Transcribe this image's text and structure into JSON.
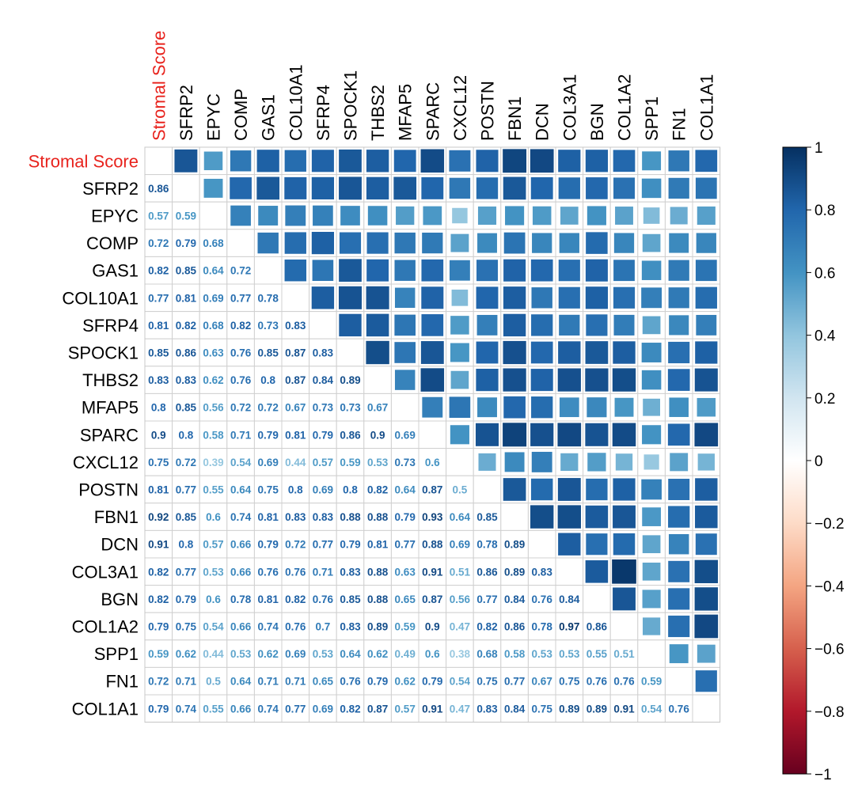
{
  "chart_data": {
    "type": "heatmap",
    "title": "",
    "labels": [
      "Stromal Score",
      "SFRP2",
      "EPYC",
      "COMP",
      "GAS1",
      "COL10A1",
      "SFRP4",
      "SPOCK1",
      "THBS2",
      "MFAP5",
      "SPARC",
      "CXCL12",
      "POSTN",
      "FBN1",
      "DCN",
      "COL3A1",
      "BGN",
      "COL1A2",
      "SPP1",
      "FN1",
      "COL1A1"
    ],
    "highlight_label": "Stromal Score",
    "highlight_color": "#e8231d",
    "values": [
      [],
      [
        0.86
      ],
      [
        0.57,
        0.59
      ],
      [
        0.72,
        0.79,
        0.68
      ],
      [
        0.82,
        0.85,
        0.64,
        0.72
      ],
      [
        0.77,
        0.81,
        0.69,
        0.77,
        0.78
      ],
      [
        0.81,
        0.82,
        0.68,
        0.82,
        0.73,
        0.83
      ],
      [
        0.85,
        0.86,
        0.63,
        0.76,
        0.85,
        0.87,
        0.83
      ],
      [
        0.83,
        0.83,
        0.62,
        0.76,
        0.8,
        0.87,
        0.84,
        0.89
      ],
      [
        0.8,
        0.85,
        0.56,
        0.72,
        0.72,
        0.67,
        0.73,
        0.73,
        0.67
      ],
      [
        0.9,
        0.8,
        0.58,
        0.71,
        0.79,
        0.81,
        0.79,
        0.86,
        0.9,
        0.69
      ],
      [
        0.75,
        0.72,
        0.39,
        0.54,
        0.69,
        0.44,
        0.57,
        0.59,
        0.53,
        0.73,
        0.6
      ],
      [
        0.81,
        0.77,
        0.55,
        0.64,
        0.75,
        0.8,
        0.69,
        0.8,
        0.82,
        0.64,
        0.87,
        0.5
      ],
      [
        0.92,
        0.85,
        0.6,
        0.74,
        0.81,
        0.83,
        0.83,
        0.88,
        0.88,
        0.79,
        0.93,
        0.64,
        0.85
      ],
      [
        0.91,
        0.8,
        0.57,
        0.66,
        0.79,
        0.72,
        0.77,
        0.79,
        0.81,
        0.77,
        0.88,
        0.69,
        0.78,
        0.89
      ],
      [
        0.82,
        0.77,
        0.53,
        0.66,
        0.76,
        0.76,
        0.71,
        0.83,
        0.88,
        0.63,
        0.91,
        0.51,
        0.86,
        0.89,
        0.83
      ],
      [
        0.82,
        0.79,
        0.6,
        0.78,
        0.81,
        0.82,
        0.76,
        0.85,
        0.88,
        0.65,
        0.87,
        0.56,
        0.77,
        0.84,
        0.76,
        0.84
      ],
      [
        0.79,
        0.75,
        0.54,
        0.66,
        0.74,
        0.76,
        0.7,
        0.83,
        0.89,
        0.59,
        0.9,
        0.47,
        0.82,
        0.86,
        0.78,
        0.97,
        0.86
      ],
      [
        0.59,
        0.62,
        0.44,
        0.53,
        0.62,
        0.69,
        0.53,
        0.64,
        0.62,
        0.49,
        0.6,
        0.38,
        0.68,
        0.58,
        0.53,
        0.53,
        0.55,
        0.51
      ],
      [
        0.72,
        0.71,
        0.5,
        0.64,
        0.71,
        0.71,
        0.65,
        0.76,
        0.79,
        0.62,
        0.79,
        0.54,
        0.75,
        0.77,
        0.67,
        0.75,
        0.76,
        0.76,
        0.59
      ],
      [
        0.79,
        0.74,
        0.55,
        0.66,
        0.74,
        0.77,
        0.69,
        0.82,
        0.87,
        0.57,
        0.91,
        0.47,
        0.83,
        0.84,
        0.75,
        0.89,
        0.89,
        0.91,
        0.54,
        0.76
      ]
    ],
    "legend": {
      "ticks": [
        "1",
        "0.8",
        "0.6",
        "0.4",
        "0.2",
        "0",
        "−0.2",
        "−0.4",
        "−0.6",
        "−0.8",
        "−1"
      ],
      "tick_values": [
        1,
        0.8,
        0.6,
        0.4,
        0.2,
        0,
        -0.2,
        -0.4,
        -0.6,
        -0.8,
        -1
      ],
      "range": [
        -1,
        1
      ],
      "placement": "right"
    },
    "colormap": {
      "stops": [
        {
          "v": -1.0,
          "c": "#67001f"
        },
        {
          "v": -0.8,
          "c": "#b2182b"
        },
        {
          "v": -0.6,
          "c": "#d6604d"
        },
        {
          "v": -0.4,
          "c": "#f4a582"
        },
        {
          "v": -0.2,
          "c": "#fddbc7"
        },
        {
          "v": 0.0,
          "c": "#ffffff"
        },
        {
          "v": 0.2,
          "c": "#d1e5f0"
        },
        {
          "v": 0.4,
          "c": "#92c5de"
        },
        {
          "v": 0.6,
          "c": "#4393c3"
        },
        {
          "v": 0.8,
          "c": "#2166ac"
        },
        {
          "v": 1.0,
          "c": "#053061"
        }
      ]
    }
  }
}
